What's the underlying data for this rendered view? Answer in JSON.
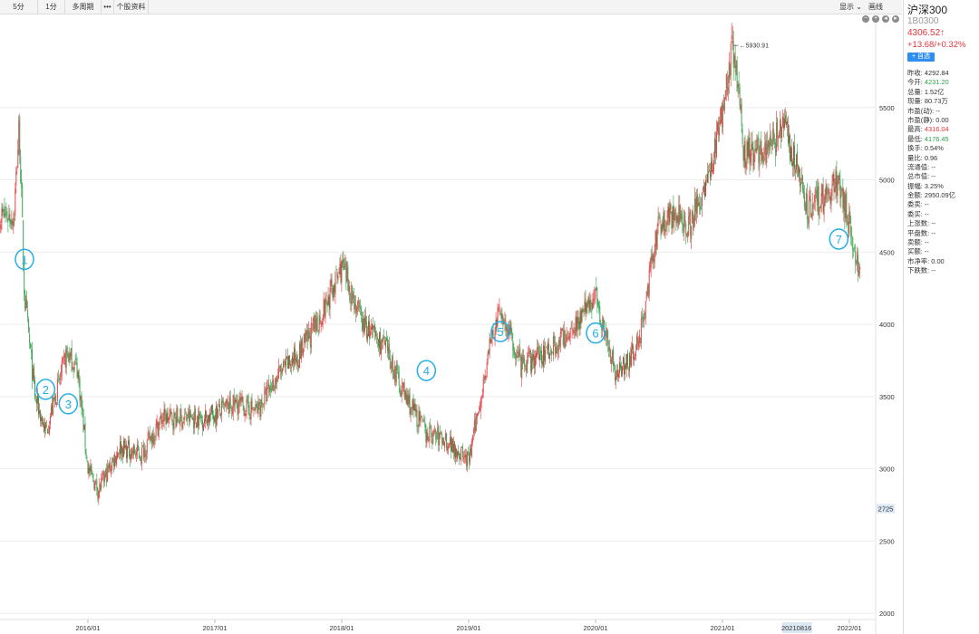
{
  "toolbar": {
    "buttons": [
      "5分",
      "1分",
      "多周期",
      "•••",
      "个股资料"
    ],
    "display": "显示",
    "draw": "画线"
  },
  "panel": {
    "name": "沪深300",
    "code": "1B0300",
    "price": "4306.52↑",
    "change": "+13.68/+0.32%",
    "watch": "+ 自选",
    "stats": [
      {
        "label": "昨收:",
        "value": "4292.84",
        "color": "#333333"
      },
      {
        "label": "今开:",
        "value": "4231.20",
        "color": "#2e9d49"
      },
      {
        "label": "总量:",
        "value": "1.52亿",
        "color": "#333333"
      },
      {
        "label": "现量:",
        "value": "80.73万",
        "color": "#333333"
      },
      {
        "label": "市盈(动):",
        "value": "--",
        "color": "#333333"
      },
      {
        "label": "市盈(静):",
        "value": "0.00",
        "color": "#333333"
      },
      {
        "label": "最高:",
        "value": "4316.04",
        "color": "#e0353b"
      },
      {
        "label": "最低:",
        "value": "4176.45",
        "color": "#2e9d49"
      },
      {
        "label": "换手:",
        "value": "0.54%",
        "color": "#333333"
      },
      {
        "label": "量比:",
        "value": "0.96",
        "color": "#333333"
      },
      {
        "label": "流通值:",
        "value": "--",
        "color": "#333333"
      },
      {
        "label": "总市值:",
        "value": "--",
        "color": "#333333"
      },
      {
        "label": "振幅:",
        "value": "3.25%",
        "color": "#333333"
      },
      {
        "label": "金额:",
        "value": "2950.09亿",
        "color": "#333333"
      },
      {
        "label": "委卖:",
        "value": "--",
        "color": "#333333"
      },
      {
        "label": "委买:",
        "value": "--",
        "color": "#333333"
      },
      {
        "label": "上涨数:",
        "value": "--",
        "color": "#333333"
      },
      {
        "label": "平盘数:",
        "value": "--",
        "color": "#333333"
      },
      {
        "label": "卖额:",
        "value": "--",
        "color": "#333333"
      },
      {
        "label": "买额:",
        "value": "--",
        "color": "#333333"
      },
      {
        "label": "市净率:",
        "value": "0.00",
        "color": "#333333"
      },
      {
        "label": "下跌数:",
        "value": "--",
        "color": "#333333"
      }
    ]
  },
  "colors": {
    "up": "#e0353b",
    "down": "#2e9d49",
    "marker": "#22aee6",
    "grid": "#ececec"
  },
  "chart_data": {
    "type": "line",
    "x_ticks": [
      "2016/01",
      "2017/01",
      "2018/01",
      "2019/01",
      "2020/01",
      "2021/01",
      "2022/01"
    ],
    "y_ticks": [
      2000,
      2500,
      3000,
      3500,
      4000,
      4500,
      5000,
      5500
    ],
    "ylim": [
      1970,
      6050
    ],
    "crosshair": {
      "x_label": "20210816",
      "y_label": "2725"
    },
    "max_label": "5930.91",
    "series": [
      {
        "x": [
          "2015/06",
          "2015/06",
          "2015/07",
          "2015/08",
          "2015/09",
          "2015/11",
          "2015/12",
          "2016/01",
          "2016/02",
          "2016/04",
          "2016/06",
          "2016/08",
          "2016/10",
          "2016/12",
          "2017/03",
          "2017/05",
          "2017/07",
          "2017/09",
          "2017/11",
          "2018/01",
          "2018/03",
          "2018/05",
          "2018/07",
          "2018/09",
          "2018/11",
          "2019/01",
          "2019/03",
          "2019/04",
          "2019/06",
          "2019/08",
          "2019/10",
          "2019/12",
          "2020/01",
          "2020/03",
          "2020/05",
          "2020/07",
          "2020/08",
          "2020/10",
          "2020/12",
          "2021/02",
          "2021/03",
          "2021/05",
          "2021/07",
          "2021/09",
          "2021/11",
          "2021/12",
          "2022/01",
          "2022/02"
        ],
        "values": [
          4750,
          5380,
          4200,
          3500,
          3250,
          3800,
          3700,
          3000,
          2850,
          3150,
          3100,
          3350,
          3350,
          3350,
          3450,
          3400,
          3650,
          3800,
          4050,
          4400,
          4000,
          3850,
          3500,
          3250,
          3200,
          3050,
          3850,
          4100,
          3700,
          3800,
          3900,
          4100,
          4200,
          3650,
          3850,
          4700,
          4750,
          4700,
          5100,
          5930,
          5200,
          5200,
          5350,
          4800,
          4900,
          5000,
          4700,
          4306
        ]
      }
    ],
    "annotations": [
      "1",
      "2",
      "3",
      "4",
      "5",
      "6",
      "7"
    ]
  }
}
